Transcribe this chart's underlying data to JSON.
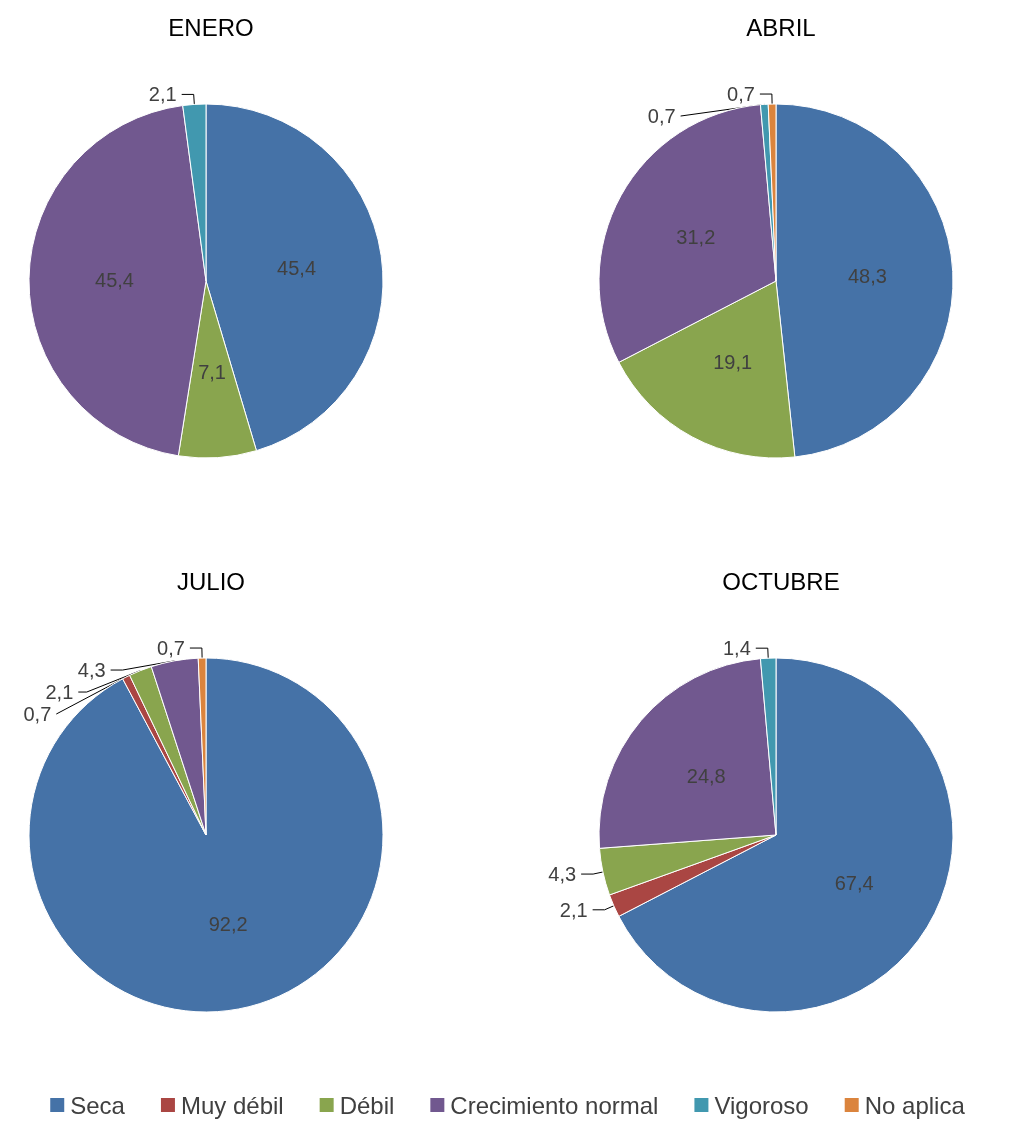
{
  "chart_data": [
    {
      "type": "pie",
      "title": "ENERO",
      "categories": [
        "Seca",
        "Muy débil",
        "Débil",
        "Crecimiento normal",
        "Vigoroso",
        "No aplica"
      ],
      "values": [
        45.4,
        null,
        7.1,
        45.4,
        2.1,
        null
      ],
      "value_labels": [
        "45,4",
        null,
        "7,1",
        "45,4",
        "2,1",
        null
      ],
      "colors": [
        "#4572a7",
        "#aa4643",
        "#89a54e",
        "#71588f",
        "#4198af",
        "#db843d"
      ],
      "legend": "bottom"
    },
    {
      "type": "pie",
      "title": "ABRIL",
      "categories": [
        null,
        null,
        null,
        null,
        null,
        null
      ],
      "values": [
        48.3,
        null,
        19.1,
        31.2,
        0.7,
        0.7
      ],
      "value_labels": [
        "48,3",
        null,
        "19,1",
        "31,2",
        "0,7",
        "0,7"
      ],
      "colors": [
        "#4572a7",
        "#aa4643",
        "#89a54e",
        "#71588f",
        "#4198af",
        "#db843d"
      ]
    },
    {
      "type": "pie",
      "title": "JULIO",
      "categories": [
        null,
        null,
        null,
        null,
        null,
        null
      ],
      "values": [
        92.2,
        0.7,
        2.1,
        4.3,
        null,
        0.7
      ],
      "value_labels": [
        "92,2",
        "0,7",
        "2,1",
        "4,3",
        null,
        "0,7"
      ],
      "colors": [
        "#4572a7",
        "#aa4643",
        "#89a54e",
        "#71588f",
        "#4198af",
        "#db843d"
      ]
    },
    {
      "type": "pie",
      "title": "OCTUBRE",
      "categories": [
        null,
        null,
        null,
        null,
        null,
        null
      ],
      "values": [
        67.4,
        2.1,
        4.3,
        24.8,
        1.4,
        null
      ],
      "value_labels": [
        "67,4",
        "2,1",
        "4,3",
        "24,8",
        "1,4",
        null
      ],
      "colors": [
        "#4572a7",
        "#aa4643",
        "#89a54e",
        "#71588f",
        "#4198af",
        "#db843d"
      ]
    }
  ]
}
